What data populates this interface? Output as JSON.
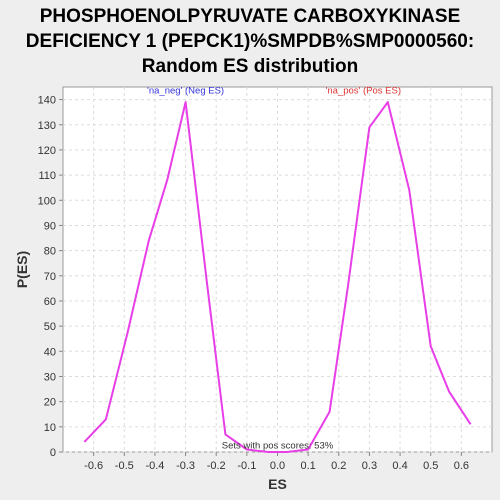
{
  "chart_data": {
    "type": "line",
    "title_lines": [
      "PHOSPHOENOLPYRUVATE CARBOXYKINASE",
      "DEFICIENCY 1 (PEPCK1)%SMPDB%SMP0000560:",
      "Random ES distribution"
    ],
    "xlabel": "ES",
    "ylabel": "P(ES)",
    "xlim": [
      -0.7,
      0.7
    ],
    "ylim": [
      0,
      145
    ],
    "x_ticks": [
      -0.6,
      -0.5,
      -0.4,
      -0.3,
      -0.2,
      -0.1,
      0.0,
      0.1,
      0.2,
      0.3,
      0.4,
      0.5,
      0.6
    ],
    "x_tick_labels": [
      "-0.6",
      "-0.5",
      "-0.4",
      "-0.3",
      "-0.2",
      "-0.1",
      "0.0",
      "0.1",
      "0.2",
      "0.3",
      "0.4",
      "0.5",
      "0.6"
    ],
    "y_ticks": [
      0,
      10,
      20,
      30,
      40,
      50,
      60,
      70,
      80,
      90,
      100,
      110,
      120,
      130,
      140
    ],
    "grid": true,
    "series": [
      {
        "color": "#e83ee8",
        "x": [
          -0.63,
          -0.56,
          -0.49,
          -0.42,
          -0.36,
          -0.3,
          -0.23,
          -0.17,
          -0.1,
          -0.03,
          0.03,
          0.1,
          0.17,
          0.23,
          0.3,
          0.36,
          0.43,
          0.5,
          0.56,
          0.63
        ],
        "y": [
          4,
          13,
          47,
          84,
          108,
          139,
          67,
          7,
          1,
          0,
          0,
          1,
          16,
          66,
          129,
          139,
          104,
          42,
          24,
          11
        ]
      }
    ],
    "annotations": [
      {
        "text": "'na_neg' (Neg ES)",
        "x": -0.3,
        "y": 142,
        "color": "#3333dd"
      },
      {
        "text": "'na_pos' (Pos ES)",
        "x": 0.28,
        "y": 142,
        "color": "#dd3333"
      },
      {
        "text": "Sets with pos scores: 53%",
        "x": 0.0,
        "y": 1,
        "color": "#333333"
      }
    ]
  }
}
